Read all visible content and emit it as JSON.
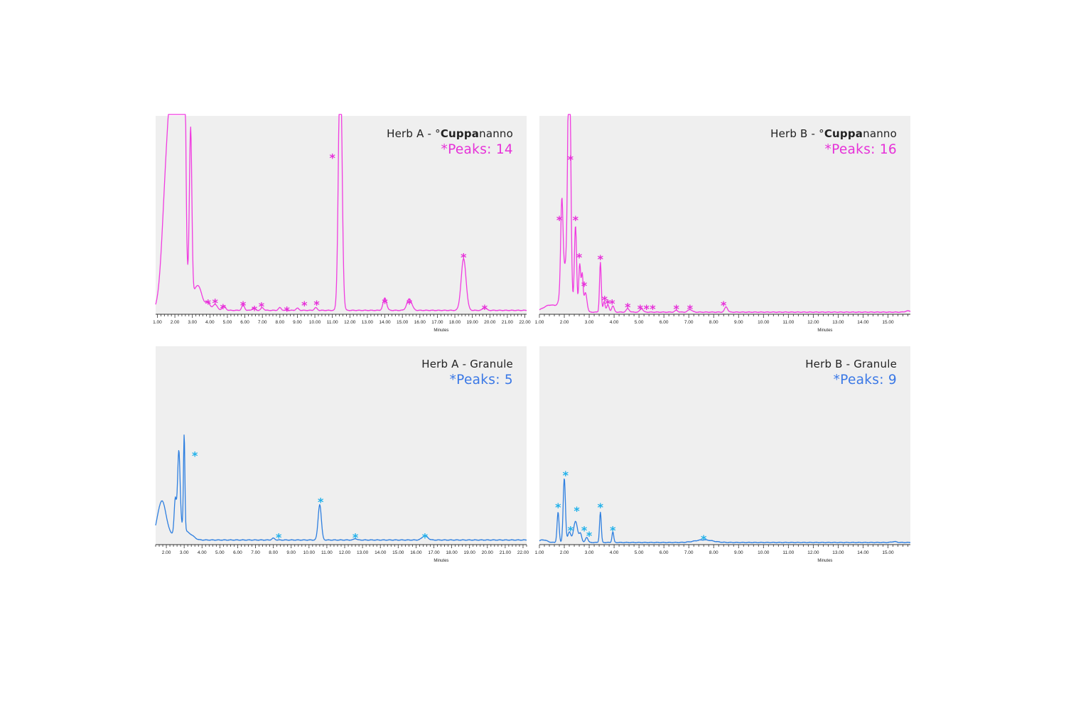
{
  "chart_data": [
    {
      "type": "line",
      "title_prefix": "Herb A - ",
      "title_brand_a": "°",
      "title_brand_b": "Cuppa",
      "title_brand_c": "nanno",
      "peaks_label": "*Peaks: 14",
      "color": "#f03ce0",
      "marker_color": "#e62ed8",
      "xlim": [
        0.9,
        22.1
      ],
      "ylim": [
        0,
        100
      ],
      "x_ticks": [
        "1.00",
        "2.00",
        "3.00",
        "4.00",
        "5.00",
        "6.00",
        "7.00",
        "8.00",
        "9.00",
        "10.00",
        "11.00",
        "12.00",
        "13.00",
        "14.00",
        "15.00",
        "16.00",
        "17.00",
        "18.00",
        "19.00",
        "20.00",
        "21.00",
        "22.00"
      ],
      "xlabel": "Minutes",
      "baseline": 1.8,
      "peaks": [
        {
          "x": 1.5,
          "h": 55,
          "w": 0.25
        },
        {
          "x": 2.05,
          "h": 150,
          "w": 0.32
        },
        {
          "x": 2.35,
          "h": 140,
          "w": 0.07
        },
        {
          "x": 2.55,
          "h": 120,
          "w": 0.07
        },
        {
          "x": 2.9,
          "h": 95,
          "w": 0.07
        },
        {
          "x": 3.3,
          "h": 14,
          "w": 0.25
        },
        {
          "x": 3.9,
          "h": 4,
          "w": 0.12
        },
        {
          "x": 4.3,
          "h": 3.5,
          "w": 0.12
        },
        {
          "x": 4.8,
          "h": 2.5,
          "w": 0.1
        },
        {
          "x": 5.9,
          "h": 3,
          "w": 0.08
        },
        {
          "x": 6.5,
          "h": 1.5,
          "w": 0.08
        },
        {
          "x": 7.0,
          "h": 1.5,
          "w": 0.08
        },
        {
          "x": 8.0,
          "h": 1.5,
          "w": 0.08
        },
        {
          "x": 9.0,
          "h": 1.2,
          "w": 0.08
        },
        {
          "x": 10.05,
          "h": 1.5,
          "w": 0.08
        },
        {
          "x": 11.45,
          "h": 150,
          "w": 0.1
        },
        {
          "x": 14.0,
          "h": 7,
          "w": 0.1
        },
        {
          "x": 15.4,
          "h": 6.5,
          "w": 0.14
        },
        {
          "x": 18.5,
          "h": 29,
          "w": 0.14
        },
        {
          "x": 19.7,
          "h": 1.5,
          "w": 0.1
        }
      ],
      "markers": [
        {
          "x": 3.9,
          "y": 7
        },
        {
          "x": 4.3,
          "y": 7.5
        },
        {
          "x": 4.75,
          "y": 4.5
        },
        {
          "x": 5.9,
          "y": 6
        },
        {
          "x": 6.55,
          "y": 3.5
        },
        {
          "x": 6.95,
          "y": 5.5
        },
        {
          "x": 8.4,
          "y": 3
        },
        {
          "x": 9.4,
          "y": 6
        },
        {
          "x": 10.1,
          "y": 6.5
        },
        {
          "x": 11.0,
          "y": 89
        },
        {
          "x": 14.0,
          "y": 7.5
        },
        {
          "x": 15.4,
          "y": 7
        },
        {
          "x": 18.5,
          "y": 33
        },
        {
          "x": 19.7,
          "y": 4
        }
      ]
    },
    {
      "type": "line",
      "title_prefix": "Herb B - ",
      "title_brand_a": "°",
      "title_brand_b": "Cuppa",
      "title_brand_c": "nanno",
      "peaks_label": "*Peaks: 16",
      "color": "#f03ce0",
      "marker_color": "#e62ed8",
      "xlim": [
        1.0,
        15.9
      ],
      "ylim": [
        0,
        100
      ],
      "x_ticks": [
        "1.00",
        "2.00",
        "3.00",
        "4.00",
        "5.00",
        "6.00",
        "7.00",
        "8.00",
        "9.00",
        "10.00",
        "11.00",
        "12.00",
        "13.00",
        "14.00",
        "15.00"
      ],
      "xlabel": "Minutes",
      "baseline": 0.8,
      "peaks": [
        {
          "x": 1.45,
          "h": 4,
          "w": 0.3
        },
        {
          "x": 1.9,
          "h": 48,
          "w": 0.045
        },
        {
          "x": 2.2,
          "h": 150,
          "w": 0.055
        },
        {
          "x": 2.05,
          "h": 25,
          "w": 0.15
        },
        {
          "x": 2.45,
          "h": 48,
          "w": 0.045
        },
        {
          "x": 2.62,
          "h": 27,
          "w": 0.04
        },
        {
          "x": 2.72,
          "h": 20,
          "w": 0.035
        },
        {
          "x": 2.85,
          "h": 11,
          "w": 0.06
        },
        {
          "x": 3.45,
          "h": 28,
          "w": 0.035
        },
        {
          "x": 3.6,
          "h": 6,
          "w": 0.04
        },
        {
          "x": 3.75,
          "h": 4,
          "w": 0.05
        },
        {
          "x": 3.95,
          "h": 3.5,
          "w": 0.05
        },
        {
          "x": 4.55,
          "h": 2,
          "w": 0.06
        },
        {
          "x": 5.1,
          "h": 2,
          "w": 0.06
        },
        {
          "x": 6.5,
          "h": 1,
          "w": 0.06
        },
        {
          "x": 7.05,
          "h": 1.5,
          "w": 0.08
        },
        {
          "x": 8.5,
          "h": 3,
          "w": 0.06
        },
        {
          "x": 15.8,
          "h": 0.7,
          "w": 0.1
        }
      ],
      "markers": [
        {
          "x": 2.25,
          "y": 88
        },
        {
          "x": 1.8,
          "y": 54
        },
        {
          "x": 2.45,
          "y": 54
        },
        {
          "x": 2.6,
          "y": 33
        },
        {
          "x": 2.8,
          "y": 17
        },
        {
          "x": 3.45,
          "y": 32
        },
        {
          "x": 3.62,
          "y": 9
        },
        {
          "x": 3.75,
          "y": 7
        },
        {
          "x": 3.92,
          "y": 7
        },
        {
          "x": 4.55,
          "y": 5
        },
        {
          "x": 5.05,
          "y": 4
        },
        {
          "x": 5.3,
          "y": 4
        },
        {
          "x": 5.55,
          "y": 4
        },
        {
          "x": 6.5,
          "y": 4
        },
        {
          "x": 7.05,
          "y": 4
        },
        {
          "x": 8.4,
          "y": 6
        }
      ]
    },
    {
      "type": "line",
      "title_prefix": "Herb A - Granule",
      "peaks_label": "*Peaks: 5",
      "color": "#2e7fe0",
      "marker_color": "#1fb0ea",
      "xlim": [
        1.4,
        22.2
      ],
      "ylim": [
        0,
        100
      ],
      "x_ticks": [
        "2.00",
        "3.00",
        "4.00",
        "5.00",
        "6.00",
        "7.00",
        "8.00",
        "9.00",
        "10.00",
        "11.00",
        "12.00",
        "13.00",
        "14.00",
        "15.00",
        "16.00",
        "17.00",
        "18.00",
        "19.00",
        "20.00",
        "21.00",
        "22.00"
      ],
      "xlabel": "Minutes",
      "baseline": 2.2,
      "peaks": [
        {
          "x": 1.75,
          "h": 22,
          "w": 0.25
        },
        {
          "x": 2.5,
          "h": 18,
          "w": 0.06
        },
        {
          "x": 2.7,
          "h": 43,
          "w": 0.07
        },
        {
          "x": 3.0,
          "h": 53,
          "w": 0.04
        },
        {
          "x": 2.8,
          "h": 8,
          "w": 0.3
        },
        {
          "x": 3.4,
          "h": 2,
          "w": 0.2
        },
        {
          "x": 8.0,
          "h": 1,
          "w": 0.08
        },
        {
          "x": 10.6,
          "h": 20,
          "w": 0.09
        },
        {
          "x": 12.6,
          "h": 0.8,
          "w": 0.08
        },
        {
          "x": 16.5,
          "h": 2.5,
          "w": 0.15
        }
      ],
      "markers": [
        {
          "x": 3.6,
          "y": 51
        },
        {
          "x": 8.3,
          "y": 5
        },
        {
          "x": 10.65,
          "y": 25
        },
        {
          "x": 12.6,
          "y": 5
        },
        {
          "x": 16.5,
          "y": 5
        }
      ]
    },
    {
      "type": "line",
      "title_prefix": "Herb B - Granule",
      "peaks_label": "*Peaks: 9",
      "color": "#2e7fe0",
      "marker_color": "#1fb0ea",
      "xlim": [
        1.0,
        15.9
      ],
      "ylim": [
        0,
        100
      ],
      "x_ticks": [
        "1.00",
        "2.00",
        "3.00",
        "4.00",
        "5.00",
        "6.00",
        "7.00",
        "8.00",
        "9.00",
        "10.00",
        "11.00",
        "12.00",
        "13.00",
        "14.00",
        "15.00"
      ],
      "xlabel": "Minutes",
      "baseline": 0.8,
      "peaks": [
        {
          "x": 1.15,
          "h": 1.5,
          "w": 0.15
        },
        {
          "x": 1.75,
          "h": 17,
          "w": 0.04
        },
        {
          "x": 2.0,
          "h": 36,
          "w": 0.045
        },
        {
          "x": 2.2,
          "h": 6,
          "w": 0.06
        },
        {
          "x": 2.45,
          "h": 12,
          "w": 0.08
        },
        {
          "x": 2.65,
          "h": 5,
          "w": 0.05
        },
        {
          "x": 2.9,
          "h": 3,
          "w": 0.05
        },
        {
          "x": 3.45,
          "h": 17,
          "w": 0.035
        },
        {
          "x": 3.95,
          "h": 6,
          "w": 0.035
        },
        {
          "x": 7.6,
          "h": 1.5,
          "w": 0.35
        },
        {
          "x": 15.25,
          "h": 0.5,
          "w": 0.1
        }
      ],
      "markers": [
        {
          "x": 2.05,
          "y": 40
        },
        {
          "x": 1.75,
          "y": 22
        },
        {
          "x": 2.25,
          "y": 9
        },
        {
          "x": 2.5,
          "y": 20
        },
        {
          "x": 2.8,
          "y": 9
        },
        {
          "x": 3.0,
          "y": 6
        },
        {
          "x": 3.45,
          "y": 22
        },
        {
          "x": 3.95,
          "y": 9
        },
        {
          "x": 7.6,
          "y": 4
        }
      ]
    }
  ]
}
